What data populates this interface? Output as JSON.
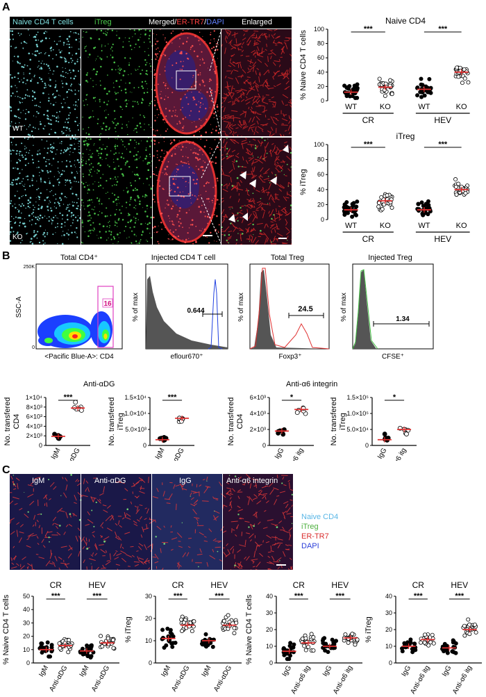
{
  "panels": {
    "A": {
      "letter": "A",
      "headers": {
        "naive": "Naive CD4 T cells",
        "itreg": "iTreg",
        "merged_a": "Merged/",
        "merged_b": "ER-TR7",
        "merged_c": "/",
        "merged_d": "DAPI",
        "enlarged": "Enlarged"
      },
      "row_labels": [
        "WT",
        "KO"
      ],
      "colors": {
        "naive": "#7fe0e0",
        "itreg": "#4ccf4c",
        "ertr7": "#e03030",
        "dapi": "#3050ff"
      }
    },
    "B": {
      "letter": "B",
      "flow": {
        "total_cd4": {
          "title": "Total CD4⁺",
          "ylabel": "SSC-A",
          "xlabel": "<Pacific Blue-A>: CD4",
          "gate": "16",
          "ytick_label": "250K"
        },
        "injected_cd4": {
          "title": "Injected CD4 T cell",
          "ylabel": "% of max",
          "xlabel": "eflour670⁺",
          "gate": "0.644"
        },
        "total_treg": {
          "title": "Total Treg",
          "ylabel": "% of max",
          "xlabel": "Foxp3⁺",
          "gate": "24.5"
        },
        "injected_treg": {
          "title": "Injected Treg",
          "ylabel": "% of max",
          "xlabel": "CFSE⁺",
          "gate": "1.34"
        }
      },
      "group_titles": [
        "Anti-αDG",
        "Anti-α6 integrin"
      ]
    },
    "C": {
      "letter": "C",
      "image_labels": [
        "IgM",
        "Anti-αDG",
        "IgG",
        "Anti-α6 integrin"
      ],
      "legend": [
        {
          "text": "Naive CD4",
          "color": "#59b6e6"
        },
        {
          "text": "iTreg",
          "color": "#4caf3c"
        },
        {
          "text": "ER-TR7",
          "color": "#d92b2b"
        },
        {
          "text": "DAPI",
          "color": "#2b3fd9"
        }
      ]
    }
  },
  "chart_data": [
    {
      "type": "scatter",
      "id": "A-naive",
      "title": "Naive CD4",
      "ylabel": "% Naive CD4 T cells",
      "ylim": [
        0,
        100
      ],
      "yticks": [
        0,
        20,
        40,
        60,
        80,
        100
      ],
      "categories": [
        "WT",
        "KO",
        "WT",
        "KO"
      ],
      "groups": [
        "CR",
        "HEV"
      ],
      "significance": "***",
      "means": [
        12,
        19,
        16,
        40
      ]
    },
    {
      "type": "scatter",
      "id": "A-itreg",
      "title": "iTreg",
      "ylabel": "% iTreg",
      "ylim": [
        0,
        100
      ],
      "yticks": [
        0,
        20,
        40,
        60,
        80,
        100
      ],
      "categories": [
        "WT",
        "KO",
        "WT",
        "KO"
      ],
      "groups": [
        "CR",
        "HEV"
      ],
      "significance": "***",
      "means": [
        13,
        25,
        13,
        40
      ]
    },
    {
      "type": "scatter",
      "id": "B-adg-cd4",
      "ylabel": "No. transfered CD4",
      "yticks_label": [
        "0",
        "2×10³",
        "4×10³",
        "6×10³",
        "8×10³",
        "1×10⁴"
      ],
      "ylim": [
        0,
        10000
      ],
      "categories": [
        "IgM",
        "Anti-αDG"
      ],
      "significance": "***",
      "means": [
        1900,
        7800
      ]
    },
    {
      "type": "scatter",
      "id": "B-adg-itreg",
      "ylabel": "No. transfered iTreg",
      "yticks_label": [
        "0",
        "5.0×10³",
        "1.0×10⁴",
        "1.5×10⁴"
      ],
      "ylim": [
        0,
        15000
      ],
      "categories": [
        "IgM",
        "Anti-αDG"
      ],
      "significance": "***",
      "means": [
        1800,
        8500
      ]
    },
    {
      "type": "scatter",
      "id": "B-a6-cd4",
      "ylabel": "No. transfered CD4",
      "yticks_label": [
        "0",
        "2×10³",
        "4×10³",
        "6×10³"
      ],
      "ylim": [
        0,
        6000
      ],
      "categories": [
        "IgG",
        "Anti-α6 itg"
      ],
      "significance": "*",
      "means": [
        1800,
        4500
      ]
    },
    {
      "type": "scatter",
      "id": "B-a6-itreg",
      "ylabel": "No. transfered iTreg",
      "yticks_label": [
        "0",
        "5.0×10⁴",
        "1.0×10⁵",
        "1.5×10⁵"
      ],
      "ylim": [
        0,
        150000
      ],
      "categories": [
        "IgG",
        "Anti-α6 itg"
      ],
      "significance": "*",
      "means": [
        18000,
        50000
      ]
    },
    {
      "type": "scatter",
      "id": "C-adg-cd4",
      "ylabel": "% Naive CD4 T cells",
      "ylim": [
        0,
        50
      ],
      "yticks": [
        0,
        10,
        20,
        30,
        40,
        50
      ],
      "categories": [
        "IgM",
        "Anti-αDG",
        "IgM",
        "Anti-αDG"
      ],
      "groups": [
        "CR",
        "HEV"
      ],
      "significance": "***",
      "means": [
        10,
        13,
        9,
        15
      ]
    },
    {
      "type": "scatter",
      "id": "C-adg-itreg",
      "ylabel": "% iTreg",
      "ylim": [
        0,
        30
      ],
      "yticks": [
        0,
        10,
        20,
        30
      ],
      "categories": [
        "IgM",
        "Anti-αDG",
        "IgM",
        "Anti-αDG"
      ],
      "groups": [
        "CR",
        "HEV"
      ],
      "significance": "***",
      "means": [
        11,
        17,
        10,
        17
      ]
    },
    {
      "type": "scatter",
      "id": "C-a6-cd4",
      "ylabel": "% Naive CD4 T cells",
      "ylim": [
        0,
        40
      ],
      "yticks": [
        0,
        10,
        20,
        30,
        40
      ],
      "categories": [
        "IgG",
        "Anti-α6 itg",
        "IgG",
        "Anti-α6 itg"
      ],
      "groups": [
        "CR",
        "HEV"
      ],
      "significance": "***",
      "means": [
        7,
        12,
        10,
        15
      ]
    },
    {
      "type": "scatter",
      "id": "C-a6-itreg",
      "ylabel": "% iTreg",
      "ylim": [
        0,
        40
      ],
      "yticks": [
        0,
        10,
        20,
        30,
        40
      ],
      "categories": [
        "IgG",
        "Anti-α6 itg",
        "IgG",
        "Anti-α6 itg"
      ],
      "groups": [
        "CR",
        "HEV"
      ],
      "significance": "***",
      "means": [
        10,
        14,
        9,
        20
      ]
    }
  ]
}
